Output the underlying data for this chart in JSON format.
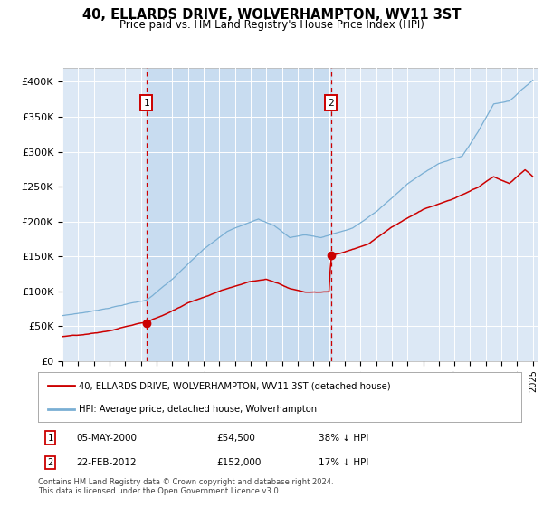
{
  "title": "40, ELLARDS DRIVE, WOLVERHAMPTON, WV11 3ST",
  "subtitle": "Price paid vs. HM Land Registry's House Price Index (HPI)",
  "background_color": "#ffffff",
  "plot_bg_color": "#dce8f5",
  "ylim": [
    0,
    420000
  ],
  "yticks": [
    0,
    50000,
    100000,
    150000,
    200000,
    250000,
    300000,
    350000,
    400000
  ],
  "ytick_labels": [
    "£0",
    "£50K",
    "£100K",
    "£150K",
    "£200K",
    "£250K",
    "£300K",
    "£350K",
    "£400K"
  ],
  "xstart_year": 1995,
  "xend_year": 2025,
  "year1": 2000.35,
  "year2": 2012.13,
  "sale1_value": 54500,
  "sale2_value": 152000,
  "legend_entry1": "40, ELLARDS DRIVE, WOLVERHAMPTON, WV11 3ST (detached house)",
  "legend_entry2": "HPI: Average price, detached house, Wolverhampton",
  "annotation1_date": "05-MAY-2000",
  "annotation1_price": "£54,500",
  "annotation1_hpi": "38% ↓ HPI",
  "annotation2_date": "22-FEB-2012",
  "annotation2_price": "£152,000",
  "annotation2_hpi": "17% ↓ HPI",
  "footer": "Contains HM Land Registry data © Crown copyright and database right 2024.\nThis data is licensed under the Open Government Licence v3.0.",
  "line_color_red": "#cc0000",
  "line_color_blue": "#7aafd4",
  "vline_color": "#cc0000",
  "grid_color": "#ffffff",
  "box_color": "#cc0000",
  "shade_color": "#c8dcf0"
}
